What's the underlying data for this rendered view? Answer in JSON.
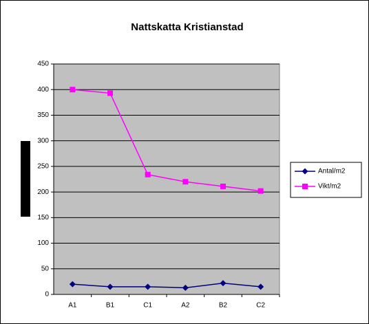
{
  "chart_data": {
    "type": "line",
    "title": "Nattskatta Kristianstad",
    "categories": [
      "A1",
      "B1",
      "C1",
      "A2",
      "B2",
      "C2"
    ],
    "series": [
      {
        "name": "Antal/m2",
        "color": "#000080",
        "marker": "diamond",
        "values": [
          20,
          15,
          15,
          13,
          22,
          15
        ]
      },
      {
        "name": "Vikt/m2",
        "color": "#ff00ff",
        "marker": "square",
        "values": [
          400,
          393,
          234,
          220,
          211,
          202
        ]
      }
    ],
    "ylim": [
      0,
      450
    ],
    "yticks": [
      0,
      50,
      100,
      150,
      200,
      250,
      300,
      350,
      400,
      450
    ],
    "grid": true,
    "legend": "right"
  }
}
